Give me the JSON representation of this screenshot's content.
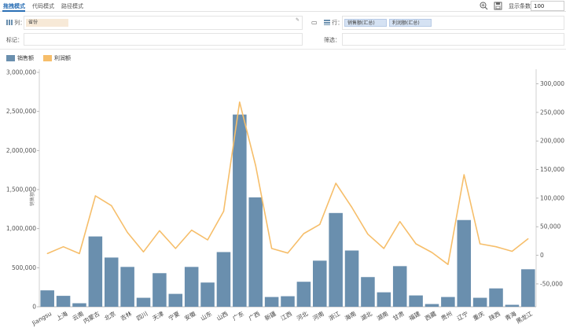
{
  "toolbar": {
    "tabs": [
      {
        "label": "拖拽模式",
        "active": true
      },
      {
        "label": "代码模式",
        "active": false
      },
      {
        "label": "路径模式",
        "active": false
      }
    ],
    "count_label": "显示条数",
    "count_value": "100"
  },
  "config": {
    "column_label": "列：",
    "column_field": "省份",
    "row_label": "行：",
    "row_fields": [
      "销售额(汇总)",
      "利润额(汇总)"
    ],
    "mark_label": "标记：",
    "filter_label": "筛选："
  },
  "colors": {
    "bar": "#6a8fae",
    "line": "#f6be6a",
    "accent": "#2a6fb5"
  },
  "chart_data": {
    "type": "bar",
    "combo": "bar+line",
    "categories": [
      "Jiangsu",
      "上海",
      "云南",
      "内蒙古",
      "北京",
      "吉林",
      "四川",
      "天津",
      "宁夏",
      "安徽",
      "山东",
      "山西",
      "广东",
      "广西",
      "新疆",
      "江西",
      "河北",
      "河南",
      "浙江",
      "海南",
      "湖北",
      "湖南",
      "甘肃",
      "福建",
      "西藏",
      "贵州",
      "辽宁",
      "重庆",
      "陕西",
      "青海",
      "黑龙江"
    ],
    "series": [
      {
        "name": "销售额",
        "type": "bar",
        "axis": "left",
        "values": [
          210000,
          140000,
          45000,
          900000,
          630000,
          510000,
          115000,
          430000,
          165000,
          510000,
          310000,
          700000,
          2460000,
          1400000,
          125000,
          135000,
          320000,
          590000,
          1200000,
          720000,
          380000,
          185000,
          520000,
          145000,
          35000,
          125000,
          1110000,
          115000,
          235000,
          25000,
          480000
        ]
      },
      {
        "name": "利润额",
        "type": "line",
        "axis": "right",
        "values": [
          3000,
          15000,
          3000,
          104000,
          87000,
          40000,
          6000,
          43000,
          12000,
          44000,
          27000,
          77000,
          268000,
          157000,
          12000,
          4000,
          38000,
          54000,
          126000,
          84000,
          37000,
          12000,
          59000,
          20000,
          5000,
          -16000,
          141000,
          20000,
          15000,
          7000,
          29000
        ]
      }
    ],
    "yleft": {
      "label": "销售额",
      "min": 0,
      "max": 3000000,
      "ticks": [
        0,
        500000,
        1000000,
        1500000,
        2000000,
        2500000,
        3000000
      ]
    },
    "yright": {
      "min": -90000,
      "max": 320000,
      "ticks": [
        -50000,
        0,
        50000,
        100000,
        150000,
        200000,
        250000,
        300000
      ]
    },
    "legend": "top-left"
  }
}
